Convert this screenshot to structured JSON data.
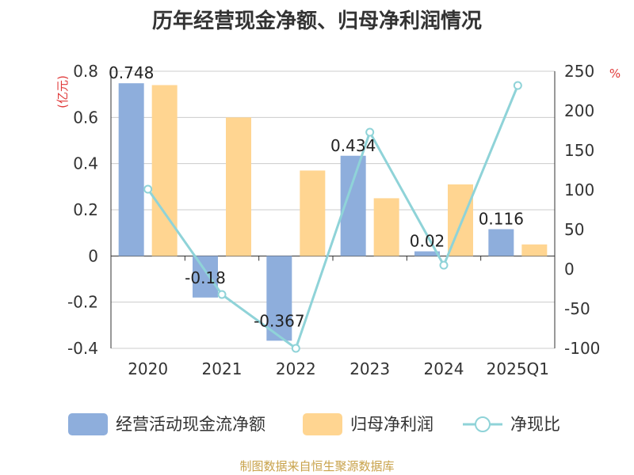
{
  "title": "历年经营现金净额、归母净利润情况",
  "source": "制图数据来自恒生聚源数据库",
  "colors": {
    "cash": "#8eaedc",
    "profit": "#ffd591",
    "ratio": "#8fd3d8",
    "axis_unit": "#e03a3a",
    "grid": "#cccccc",
    "text": "#333333"
  },
  "chart_data": {
    "type": "bar",
    "categories": [
      "2020",
      "2021",
      "2022",
      "2023",
      "2024",
      "2025Q1"
    ],
    "left_unit": "(亿元)",
    "right_unit": "%",
    "ylim": [
      -0.4,
      0.8
    ],
    "y2lim": [
      -100,
      250
    ],
    "yticks": [
      "0.8",
      "0.6",
      "0.4",
      "0.2",
      "0",
      "-0.2",
      "-0.4"
    ],
    "y2ticks": [
      "250",
      "200",
      "150",
      "100",
      "50",
      "0",
      "-50",
      "-100"
    ],
    "series": [
      {
        "name": "经营活动现金流净额",
        "type": "bar",
        "axis": "left",
        "values": [
          0.748,
          -0.18,
          -0.367,
          0.434,
          0.02,
          0.116
        ],
        "labels": [
          "0.748",
          "-0.18",
          "-0.367",
          "0.434",
          "0.02",
          "0.116"
        ]
      },
      {
        "name": "归母净利润",
        "type": "bar",
        "axis": "left",
        "values": [
          0.74,
          0.6,
          0.37,
          0.25,
          0.31,
          0.05
        ]
      },
      {
        "name": "净现比",
        "type": "line",
        "axis": "right",
        "values": [
          101,
          -32,
          -100,
          173,
          5,
          232
        ]
      }
    ],
    "legend_position": "bottom",
    "grid": true
  }
}
